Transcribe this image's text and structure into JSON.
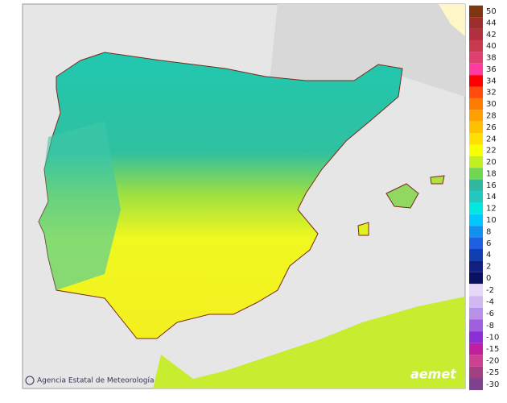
{
  "legend": {
    "positive": [
      {
        "label": 50,
        "color": "#7f3510"
      },
      {
        "label": 44,
        "color": "#9b2d2d"
      },
      {
        "label": 42,
        "color": "#b03040"
      },
      {
        "label": 40,
        "color": "#c83a50"
      },
      {
        "label": 38,
        "color": "#e04070"
      },
      {
        "label": 36,
        "color": "#ff3aa0"
      },
      {
        "label": 34,
        "color": "#ff0000"
      },
      {
        "label": 32,
        "color": "#ff4a10"
      },
      {
        "label": 30,
        "color": "#ff7a00"
      },
      {
        "label": 28,
        "color": "#ffa000"
      },
      {
        "label": 26,
        "color": "#ffc000"
      },
      {
        "label": 24,
        "color": "#ffe000"
      },
      {
        "label": 22,
        "color": "#f8ff00"
      },
      {
        "label": 20,
        "color": "#c0f020"
      },
      {
        "label": 18,
        "color": "#70d850"
      },
      {
        "label": 16,
        "color": "#30b8a0"
      },
      {
        "label": 14,
        "color": "#20c8c0"
      },
      {
        "label": 12,
        "color": "#00e8e0"
      },
      {
        "label": 10,
        "color": "#00c8ff"
      },
      {
        "label": 8,
        "color": "#1090f0"
      },
      {
        "label": 6,
        "color": "#2060e0"
      },
      {
        "label": 4,
        "color": "#1040b0"
      },
      {
        "label": 2,
        "color": "#102080"
      },
      {
        "label": 0,
        "color": "#0a1060"
      }
    ],
    "negative": [
      {
        "label": -2,
        "color": "#e8d8f8"
      },
      {
        "label": -4,
        "color": "#d0b8f0"
      },
      {
        "label": -6,
        "color": "#b890e8"
      },
      {
        "label": -8,
        "color": "#a060e0"
      },
      {
        "label": -10,
        "color": "#8a30d8"
      },
      {
        "label": -15,
        "color": "#c020a0"
      },
      {
        "label": -20,
        "color": "#d04090"
      },
      {
        "label": -25,
        "color": "#a04080"
      },
      {
        "label": -30,
        "color": "#804090"
      }
    ]
  },
  "credit": "Agencia Estatal de Meteorología",
  "logo": "aemet"
}
